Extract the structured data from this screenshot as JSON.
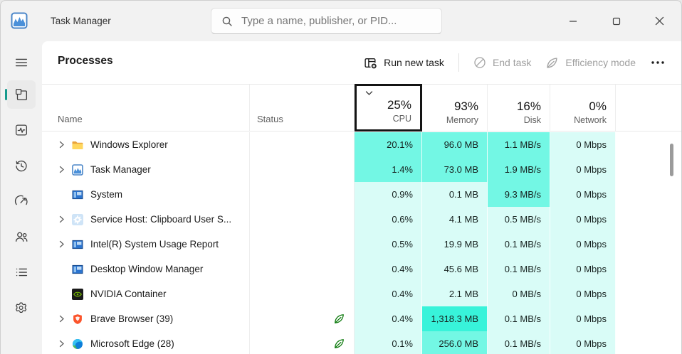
{
  "window": {
    "title": "Task Manager"
  },
  "titlebar": {
    "search_placeholder": "Type a name, publisher, or PID..."
  },
  "toolbar": {
    "heading": "Processes",
    "run_new_task": "Run new task",
    "end_task": "End task",
    "efficiency_mode": "Efficiency mode"
  },
  "columns": {
    "name": {
      "label": "Name"
    },
    "status": {
      "label": "Status"
    },
    "cpu": {
      "label": "CPU",
      "value": "25%"
    },
    "memory": {
      "label": "Memory",
      "value": "93%"
    },
    "disk": {
      "label": "Disk",
      "value": "16%"
    },
    "network": {
      "label": "Network",
      "value": "0%"
    }
  },
  "sidebar_icons": [
    "menu-icon",
    "processes-icon",
    "performance-icon",
    "app-history-icon",
    "startup-apps-icon",
    "users-icon",
    "details-icon",
    "services-icon"
  ],
  "titlebar_icons": [
    "task-manager-logo-icon",
    "search-icon",
    "minimize-icon",
    "maximize-icon",
    "close-icon"
  ],
  "rows": [
    {
      "name": "Windows Explorer",
      "icon": "folder-icon",
      "expandable": true,
      "status_leaf": false,
      "cpu": "20.1%",
      "memory": "96.0 MB",
      "disk": "1.1 MB/s",
      "network": "0 Mbps",
      "heat": {
        "cpu": 2,
        "memory": 2,
        "disk": 2,
        "network": 1
      }
    },
    {
      "name": "Task Manager",
      "icon": "task-manager-icon",
      "expandable": true,
      "status_leaf": false,
      "cpu": "1.4%",
      "memory": "73.0 MB",
      "disk": "1.9 MB/s",
      "network": "0 Mbps",
      "heat": {
        "cpu": 2,
        "memory": 2,
        "disk": 2,
        "network": 1
      }
    },
    {
      "name": "System",
      "icon": "system-window-icon",
      "expandable": false,
      "status_leaf": false,
      "cpu": "0.9%",
      "memory": "0.1 MB",
      "disk": "9.3 MB/s",
      "network": "0 Mbps",
      "heat": {
        "cpu": 1,
        "memory": 1,
        "disk": 2,
        "network": 1
      }
    },
    {
      "name": "Service Host: Clipboard User S...",
      "icon": "service-gear-icon",
      "expandable": true,
      "status_leaf": false,
      "cpu": "0.6%",
      "memory": "4.1 MB",
      "disk": "0.5 MB/s",
      "network": "0 Mbps",
      "heat": {
        "cpu": 1,
        "memory": 1,
        "disk": 1,
        "network": 1
      }
    },
    {
      "name": "Intel(R) System Usage Report",
      "icon": "system-window-icon",
      "expandable": true,
      "status_leaf": false,
      "cpu": "0.5%",
      "memory": "19.9 MB",
      "disk": "0.1 MB/s",
      "network": "0 Mbps",
      "heat": {
        "cpu": 1,
        "memory": 1,
        "disk": 1,
        "network": 1
      }
    },
    {
      "name": "Desktop Window Manager",
      "icon": "system-window-icon",
      "expandable": false,
      "status_leaf": false,
      "cpu": "0.4%",
      "memory": "45.6 MB",
      "disk": "0.1 MB/s",
      "network": "0 Mbps",
      "heat": {
        "cpu": 1,
        "memory": 1,
        "disk": 1,
        "network": 1
      }
    },
    {
      "name": "NVIDIA Container",
      "icon": "nvidia-icon",
      "expandable": false,
      "status_leaf": false,
      "cpu": "0.4%",
      "memory": "2.1 MB",
      "disk": "0 MB/s",
      "network": "0 Mbps",
      "heat": {
        "cpu": 1,
        "memory": 1,
        "disk": 1,
        "network": 1
      }
    },
    {
      "name": "Brave Browser (39)",
      "icon": "brave-icon",
      "expandable": true,
      "status_leaf": true,
      "cpu": "0.4%",
      "memory": "1,318.3 MB",
      "disk": "0.1 MB/s",
      "network": "0 Mbps",
      "heat": {
        "cpu": 1,
        "memory": 3,
        "disk": 1,
        "network": 1
      }
    },
    {
      "name": "Microsoft Edge (28)",
      "icon": "edge-icon",
      "expandable": true,
      "status_leaf": true,
      "cpu": "0.1%",
      "memory": "256.0 MB",
      "disk": "0.1 MB/s",
      "network": "0 Mbps",
      "heat": {
        "cpu": 1,
        "memory": 2,
        "disk": 1,
        "network": 1
      }
    }
  ],
  "colors": {
    "accent": "#159a8d",
    "heat1": "#d9fcf7",
    "heat2": "#73f7e4",
    "heat3": "#38f3da",
    "leaf": "#107c10"
  }
}
